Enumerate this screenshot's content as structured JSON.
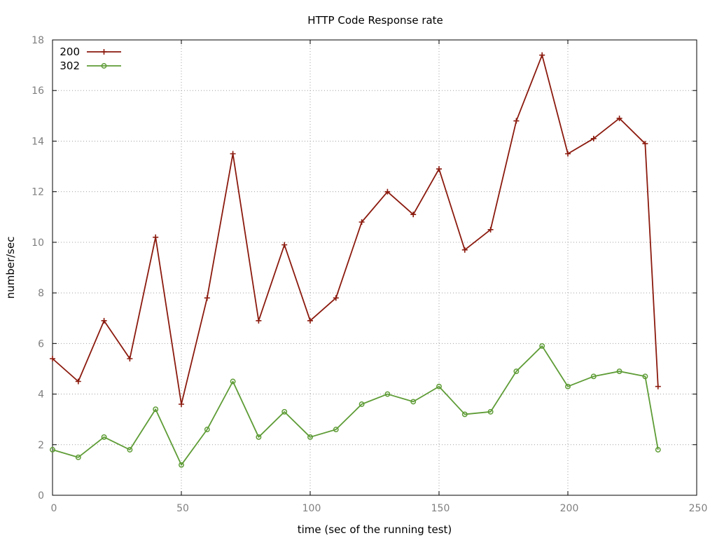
{
  "chart_data": {
    "type": "line",
    "title": "HTTP Code Response rate",
    "xlabel": "time (sec of the running test)",
    "ylabel": "number/sec",
    "xlim": [
      0,
      250
    ],
    "ylim": [
      0,
      18
    ],
    "xticks": [
      0,
      50,
      100,
      150,
      200,
      250
    ],
    "yticks": [
      0,
      2,
      4,
      6,
      8,
      10,
      12,
      14,
      16,
      18
    ],
    "grid": true,
    "legend_position": "top-left",
    "x": [
      0,
      10,
      20,
      30,
      40,
      50,
      60,
      70,
      80,
      90,
      100,
      110,
      120,
      130,
      140,
      150,
      160,
      170,
      180,
      190,
      200,
      210,
      220,
      230,
      235
    ],
    "series": [
      {
        "name": "200",
        "color": "#8b1a0e",
        "marker": "plus",
        "values": [
          5.4,
          4.5,
          6.9,
          5.4,
          10.2,
          3.6,
          7.8,
          13.5,
          6.9,
          9.9,
          6.9,
          7.8,
          10.8,
          12.0,
          11.1,
          12.9,
          9.7,
          10.5,
          14.8,
          17.4,
          13.5,
          14.1,
          14.9,
          13.9,
          4.3
        ]
      },
      {
        "name": "302",
        "color": "#5e9c36",
        "marker": "circle",
        "values": [
          1.8,
          1.5,
          2.3,
          1.8,
          3.4,
          1.2,
          2.6,
          4.5,
          2.3,
          3.3,
          2.3,
          2.6,
          3.6,
          4.0,
          3.7,
          4.3,
          3.2,
          3.3,
          4.9,
          5.9,
          4.3,
          4.7,
          4.9,
          4.7,
          1.8
        ]
      }
    ]
  }
}
